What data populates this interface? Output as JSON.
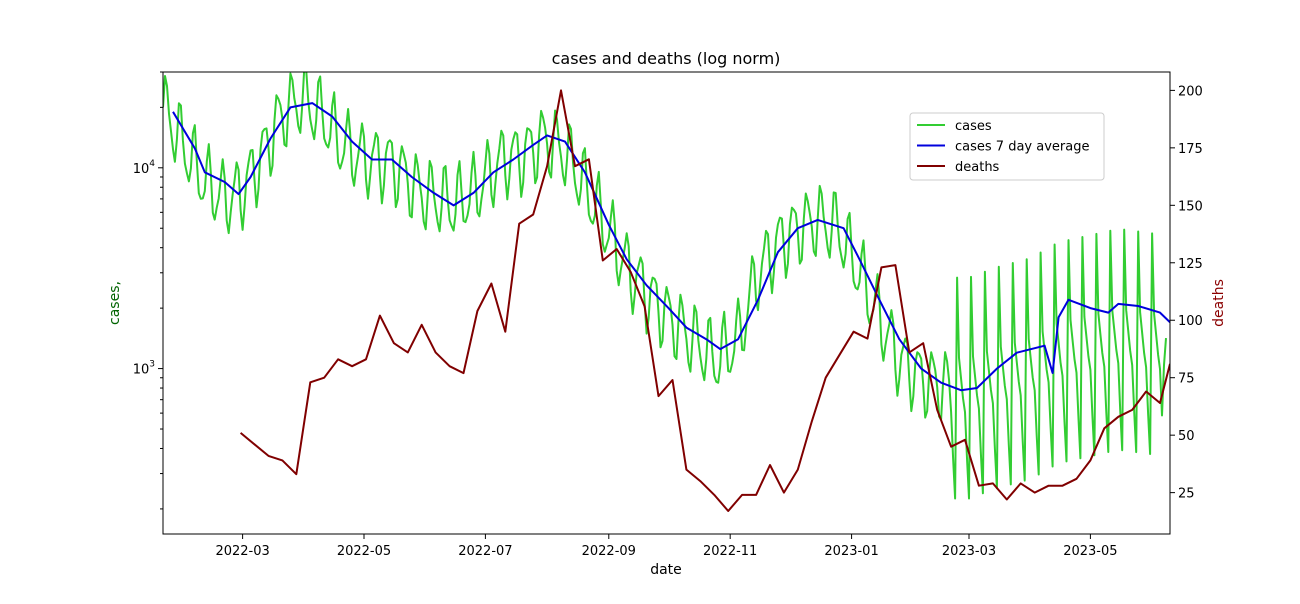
{
  "chart_data": {
    "type": "line",
    "title": "cases and deaths (log norm)",
    "xlabel": "date",
    "ylabel_left": "cases,",
    "ylabel_right": "deaths",
    "y_left_scale": "log",
    "y_left_range": [
      150,
      30000
    ],
    "y_right_range": [
      7,
      208
    ],
    "x_range": [
      "2022-01-20",
      "2023-06-10"
    ],
    "x_ticks": [
      "2022-03",
      "2022-05",
      "2022-07",
      "2022-09",
      "2022-11",
      "2023-01",
      "2023-03",
      "2023-05"
    ],
    "x_tick_dates": [
      "2022-03-01",
      "2022-05-01",
      "2022-07-01",
      "2022-09-01",
      "2022-11-01",
      "2023-01-01",
      "2023-03-01",
      "2023-05-01"
    ],
    "y_left_ticks": [
      {
        "base": "10",
        "exp": "3",
        "value": 1000
      },
      {
        "base": "10",
        "exp": "4",
        "value": 10000
      }
    ],
    "y_right_ticks": [
      25,
      50,
      75,
      100,
      125,
      150,
      175,
      200
    ],
    "grid": false,
    "legend_position": "upper-right",
    "legend": [
      {
        "label": "cases",
        "color": "#32cd32"
      },
      {
        "label": "cases 7 day average",
        "color": "#0000dd"
      },
      {
        "label": "deaths",
        "color": "#800000"
      }
    ],
    "series": [
      {
        "name": "cases",
        "axis": "left",
        "color": "#32cd32",
        "anchors": [
          [
            "2022-01-20",
            20000
          ],
          [
            "2022-02-01",
            12000
          ],
          [
            "2022-02-10",
            8500
          ],
          [
            "2022-02-20",
            7000
          ],
          [
            "2022-02-28",
            7500
          ],
          [
            "2022-03-10",
            11000
          ],
          [
            "2022-03-20",
            18000
          ],
          [
            "2022-03-30",
            22000
          ],
          [
            "2022-04-10",
            18000
          ],
          [
            "2022-04-20",
            13000
          ],
          [
            "2022-05-01",
            11000
          ],
          [
            "2022-05-15",
            10500
          ],
          [
            "2022-05-30",
            7500
          ],
          [
            "2022-06-15",
            6500
          ],
          [
            "2022-06-25",
            7500
          ],
          [
            "2022-07-10",
            11000
          ],
          [
            "2022-07-20",
            11500
          ],
          [
            "2022-07-31",
            14000
          ],
          [
            "2022-08-10",
            12000
          ],
          [
            "2022-08-20",
            8000
          ],
          [
            "2022-09-01",
            4800
          ],
          [
            "2022-09-10",
            3200
          ],
          [
            "2022-09-20",
            2400
          ],
          [
            "2022-10-01",
            1800
          ],
          [
            "2022-10-15",
            1350
          ],
          [
            "2022-10-25",
            1100
          ],
          [
            "2022-11-05",
            1400
          ],
          [
            "2022-11-15",
            3000
          ],
          [
            "2022-11-25",
            4200
          ],
          [
            "2022-12-05",
            5000
          ],
          [
            "2022-12-15",
            5500
          ],
          [
            "2022-12-25",
            5000
          ],
          [
            "2023-01-05",
            3000
          ],
          [
            "2023-01-15",
            1800
          ],
          [
            "2023-01-25",
            1100
          ],
          [
            "2023-02-05",
            900
          ],
          [
            "2023-02-20",
            800
          ],
          [
            "2023-03-01",
            800
          ],
          [
            "2023-03-15",
            900
          ],
          [
            "2023-04-01",
            1000
          ],
          [
            "2023-04-15",
            1200
          ],
          [
            "2023-05-01",
            1300
          ],
          [
            "2023-05-15",
            1400
          ],
          [
            "2023-06-08",
            1300
          ]
        ]
      },
      {
        "name": "cases 7 day average",
        "axis": "left",
        "color": "#0000dd",
        "points": [
          [
            "2022-01-25",
            19000
          ],
          [
            "2022-02-05",
            12500
          ],
          [
            "2022-02-10",
            9500
          ],
          [
            "2022-02-20",
            8500
          ],
          [
            "2022-02-27",
            7400
          ],
          [
            "2022-03-05",
            9000
          ],
          [
            "2022-03-15",
            14000
          ],
          [
            "2022-03-25",
            20000
          ],
          [
            "2022-04-05",
            21000
          ],
          [
            "2022-04-15",
            18000
          ],
          [
            "2022-04-25",
            13500
          ],
          [
            "2022-05-05",
            11000
          ],
          [
            "2022-05-15",
            11000
          ],
          [
            "2022-05-25",
            9000
          ],
          [
            "2022-06-05",
            7500
          ],
          [
            "2022-06-15",
            6500
          ],
          [
            "2022-06-25",
            7500
          ],
          [
            "2022-07-05",
            9500
          ],
          [
            "2022-07-15",
            11000
          ],
          [
            "2022-07-25",
            13000
          ],
          [
            "2022-08-01",
            14500
          ],
          [
            "2022-08-10",
            13500
          ],
          [
            "2022-08-20",
            9500
          ],
          [
            "2022-09-01",
            5200
          ],
          [
            "2022-09-10",
            3500
          ],
          [
            "2022-09-20",
            2600
          ],
          [
            "2022-10-01",
            2000
          ],
          [
            "2022-10-10",
            1600
          ],
          [
            "2022-10-20",
            1400
          ],
          [
            "2022-10-27",
            1250
          ],
          [
            "2022-11-05",
            1400
          ],
          [
            "2022-11-15",
            2200
          ],
          [
            "2022-11-25",
            3800
          ],
          [
            "2022-12-05",
            5000
          ],
          [
            "2022-12-15",
            5500
          ],
          [
            "2022-12-28",
            5000
          ],
          [
            "2023-01-05",
            3500
          ],
          [
            "2023-01-15",
            2200
          ],
          [
            "2023-01-25",
            1400
          ],
          [
            "2023-02-05",
            1000
          ],
          [
            "2023-02-15",
            850
          ],
          [
            "2023-02-25",
            780
          ],
          [
            "2023-03-05",
            800
          ],
          [
            "2023-03-15",
            1000
          ],
          [
            "2023-03-25",
            1200
          ],
          [
            "2023-04-08",
            1300
          ],
          [
            "2023-04-12",
            950
          ],
          [
            "2023-04-15",
            1800
          ],
          [
            "2023-04-20",
            2200
          ],
          [
            "2023-05-01",
            2000
          ],
          [
            "2023-05-10",
            1900
          ],
          [
            "2023-05-15",
            2100
          ],
          [
            "2023-05-25",
            2050
          ],
          [
            "2023-06-05",
            1900
          ],
          [
            "2023-06-10",
            1700
          ]
        ]
      },
      {
        "name": "deaths",
        "axis": "right",
        "color": "#800000",
        "points": [
          [
            "2022-02-28",
            51
          ],
          [
            "2022-03-14",
            41
          ],
          [
            "2022-03-21",
            39
          ],
          [
            "2022-03-28",
            33
          ],
          [
            "2022-04-04",
            73
          ],
          [
            "2022-04-11",
            75
          ],
          [
            "2022-04-18",
            83
          ],
          [
            "2022-04-25",
            80
          ],
          [
            "2022-05-02",
            83
          ],
          [
            "2022-05-09",
            102
          ],
          [
            "2022-05-16",
            90
          ],
          [
            "2022-05-23",
            86
          ],
          [
            "2022-05-30",
            98
          ],
          [
            "2022-06-06",
            86
          ],
          [
            "2022-06-13",
            80
          ],
          [
            "2022-06-20",
            77
          ],
          [
            "2022-06-27",
            104
          ],
          [
            "2022-07-04",
            116
          ],
          [
            "2022-07-11",
            95
          ],
          [
            "2022-07-18",
            142
          ],
          [
            "2022-07-25",
            146
          ],
          [
            "2022-08-01",
            167
          ],
          [
            "2022-08-08",
            200
          ],
          [
            "2022-08-15",
            167
          ],
          [
            "2022-08-22",
            170
          ],
          [
            "2022-08-29",
            126
          ],
          [
            "2022-09-05",
            131
          ],
          [
            "2022-09-12",
            121
          ],
          [
            "2022-09-19",
            106
          ],
          [
            "2022-09-26",
            67
          ],
          [
            "2022-10-03",
            74
          ],
          [
            "2022-10-10",
            35
          ],
          [
            "2022-10-17",
            30
          ],
          [
            "2022-10-24",
            24
          ],
          [
            "2022-10-31",
            17
          ],
          [
            "2022-11-07",
            24
          ],
          [
            "2022-11-14",
            24
          ],
          [
            "2022-11-21",
            37
          ],
          [
            "2022-11-28",
            25
          ],
          [
            "2022-12-05",
            35
          ],
          [
            "2022-12-12",
            56
          ],
          [
            "2022-12-19",
            75
          ],
          [
            "2022-12-26",
            85
          ],
          [
            "2023-01-02",
            95
          ],
          [
            "2023-01-09",
            92
          ],
          [
            "2023-01-16",
            123
          ],
          [
            "2023-01-23",
            124
          ],
          [
            "2023-01-30",
            86
          ],
          [
            "2023-02-06",
            90
          ],
          [
            "2023-02-13",
            61
          ],
          [
            "2023-02-20",
            45
          ],
          [
            "2023-02-27",
            48
          ],
          [
            "2023-03-06",
            28
          ],
          [
            "2023-03-13",
            29
          ],
          [
            "2023-03-20",
            22
          ],
          [
            "2023-03-27",
            29
          ],
          [
            "2023-04-03",
            25
          ],
          [
            "2023-04-10",
            28
          ],
          [
            "2023-04-17",
            28
          ],
          [
            "2023-04-24",
            31
          ],
          [
            "2023-05-01",
            39
          ],
          [
            "2023-05-08",
            53
          ],
          [
            "2023-05-15",
            58
          ],
          [
            "2023-05-22",
            61
          ],
          [
            "2023-05-29",
            69
          ],
          [
            "2023-06-05",
            64
          ],
          [
            "2023-06-10",
            81
          ]
        ]
      }
    ]
  }
}
